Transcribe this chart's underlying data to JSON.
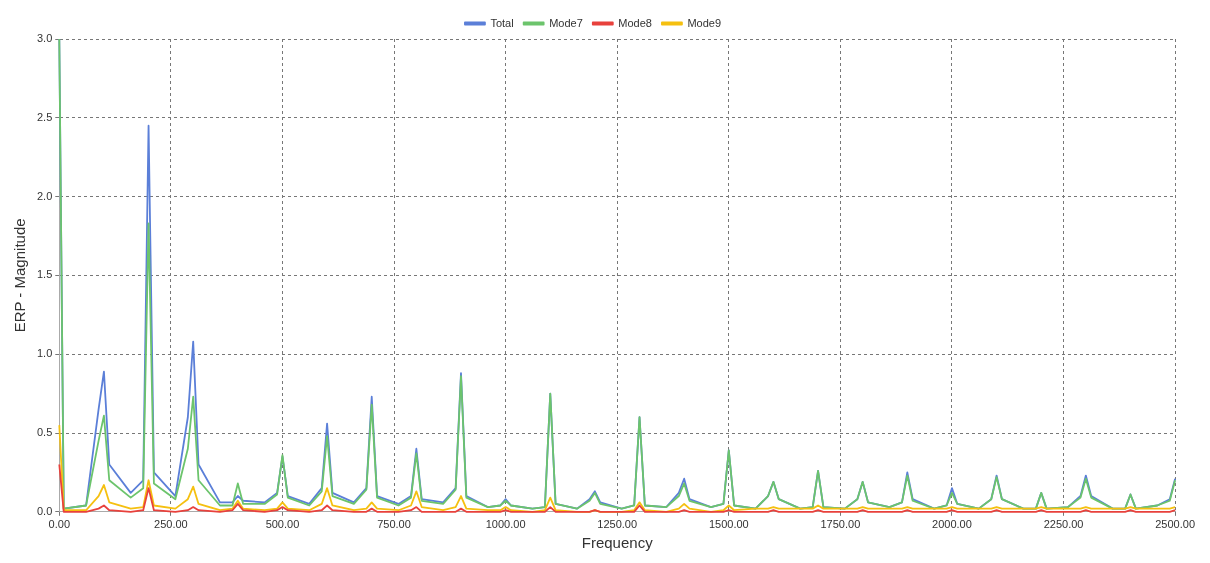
{
  "chart_data": {
    "type": "line",
    "xlabel": "Frequency",
    "ylabel": "ERP - Magnitude",
    "x": [
      0,
      10,
      60,
      88,
      100,
      112,
      160,
      188,
      200,
      212,
      260,
      288,
      300,
      312,
      360,
      388,
      400,
      412,
      460,
      488,
      500,
      512,
      560,
      588,
      600,
      612,
      660,
      688,
      700,
      712,
      760,
      788,
      800,
      812,
      860,
      888,
      900,
      912,
      960,
      988,
      1000,
      1012,
      1060,
      1088,
      1100,
      1112,
      1160,
      1188,
      1200,
      1212,
      1260,
      1288,
      1300,
      1312,
      1360,
      1388,
      1400,
      1412,
      1460,
      1488,
      1500,
      1512,
      1560,
      1588,
      1600,
      1612,
      1660,
      1688,
      1700,
      1712,
      1760,
      1788,
      1800,
      1812,
      1860,
      1888,
      1900,
      1912,
      1960,
      1988,
      2000,
      2012,
      2060,
      2088,
      2100,
      2112,
      2160,
      2188,
      2200,
      2212,
      2260,
      2288,
      2300,
      2312,
      2360,
      2388,
      2400,
      2412,
      2460,
      2488,
      2500
    ],
    "series": [
      {
        "name": "Total",
        "color": "#5b7fd8",
        "values": [
          3.0,
          0.02,
          0.04,
          0.65,
          0.89,
          0.3,
          0.12,
          0.2,
          2.45,
          0.25,
          0.1,
          0.6,
          1.08,
          0.3,
          0.06,
          0.06,
          0.1,
          0.07,
          0.06,
          0.12,
          0.35,
          0.1,
          0.05,
          0.15,
          0.56,
          0.12,
          0.06,
          0.15,
          0.73,
          0.1,
          0.05,
          0.1,
          0.4,
          0.08,
          0.06,
          0.15,
          0.88,
          0.1,
          0.03,
          0.04,
          0.08,
          0.04,
          0.02,
          0.03,
          0.75,
          0.05,
          0.02,
          0.08,
          0.13,
          0.06,
          0.02,
          0.04,
          0.6,
          0.04,
          0.03,
          0.12,
          0.21,
          0.08,
          0.03,
          0.05,
          0.39,
          0.04,
          0.02,
          0.1,
          0.19,
          0.08,
          0.02,
          0.03,
          0.26,
          0.03,
          0.02,
          0.08,
          0.19,
          0.06,
          0.03,
          0.06,
          0.25,
          0.08,
          0.02,
          0.04,
          0.15,
          0.05,
          0.02,
          0.08,
          0.23,
          0.08,
          0.02,
          0.02,
          0.12,
          0.02,
          0.03,
          0.1,
          0.23,
          0.1,
          0.02,
          0.02,
          0.11,
          0.02,
          0.04,
          0.08,
          0.21
        ]
      },
      {
        "name": "Mode7",
        "color": "#6cc46c",
        "values": [
          3.0,
          0.02,
          0.04,
          0.45,
          0.61,
          0.2,
          0.09,
          0.15,
          1.83,
          0.18,
          0.08,
          0.4,
          0.73,
          0.2,
          0.04,
          0.04,
          0.18,
          0.05,
          0.05,
          0.11,
          0.36,
          0.09,
          0.04,
          0.13,
          0.48,
          0.1,
          0.05,
          0.14,
          0.68,
          0.09,
          0.04,
          0.09,
          0.37,
          0.07,
          0.05,
          0.14,
          0.86,
          0.09,
          0.03,
          0.04,
          0.07,
          0.04,
          0.02,
          0.03,
          0.75,
          0.05,
          0.02,
          0.07,
          0.12,
          0.05,
          0.02,
          0.04,
          0.6,
          0.04,
          0.03,
          0.1,
          0.18,
          0.07,
          0.03,
          0.05,
          0.39,
          0.04,
          0.02,
          0.1,
          0.19,
          0.08,
          0.02,
          0.03,
          0.26,
          0.03,
          0.02,
          0.08,
          0.19,
          0.06,
          0.03,
          0.06,
          0.23,
          0.07,
          0.02,
          0.04,
          0.12,
          0.05,
          0.02,
          0.08,
          0.22,
          0.08,
          0.02,
          0.02,
          0.12,
          0.02,
          0.03,
          0.09,
          0.21,
          0.09,
          0.02,
          0.02,
          0.11,
          0.02,
          0.04,
          0.07,
          0.2
        ]
      },
      {
        "name": "Mode8",
        "color": "#e8413c",
        "values": [
          0.3,
          0.0,
          0.0,
          0.02,
          0.04,
          0.01,
          0.0,
          0.01,
          0.15,
          0.01,
          0.0,
          0.01,
          0.03,
          0.01,
          0.0,
          0.01,
          0.05,
          0.01,
          0.0,
          0.01,
          0.03,
          0.01,
          0.0,
          0.01,
          0.04,
          0.01,
          0.0,
          0.0,
          0.02,
          0.0,
          0.0,
          0.01,
          0.03,
          0.0,
          0.0,
          0.0,
          0.02,
          0.0,
          0.0,
          0.0,
          0.01,
          0.0,
          0.0,
          0.0,
          0.03,
          0.0,
          0.0,
          0.0,
          0.01,
          0.0,
          0.0,
          0.0,
          0.04,
          0.0,
          0.0,
          0.0,
          0.01,
          0.0,
          0.0,
          0.0,
          0.01,
          0.0,
          0.0,
          0.0,
          0.01,
          0.0,
          0.0,
          0.0,
          0.01,
          0.0,
          0.0,
          0.0,
          0.01,
          0.0,
          0.0,
          0.0,
          0.01,
          0.0,
          0.0,
          0.0,
          0.01,
          0.0,
          0.0,
          0.0,
          0.01,
          0.0,
          0.0,
          0.0,
          0.01,
          0.0,
          0.0,
          0.0,
          0.01,
          0.0,
          0.0,
          0.0,
          0.01,
          0.0,
          0.0,
          0.0,
          0.01
        ]
      },
      {
        "name": "Mode9",
        "color": "#f5c010",
        "values": [
          0.55,
          0.01,
          0.01,
          0.1,
          0.17,
          0.06,
          0.02,
          0.03,
          0.2,
          0.04,
          0.02,
          0.08,
          0.16,
          0.05,
          0.01,
          0.02,
          0.07,
          0.02,
          0.01,
          0.02,
          0.06,
          0.02,
          0.01,
          0.05,
          0.15,
          0.04,
          0.01,
          0.02,
          0.06,
          0.02,
          0.01,
          0.04,
          0.13,
          0.03,
          0.01,
          0.03,
          0.1,
          0.02,
          0.01,
          0.01,
          0.03,
          0.01,
          0.0,
          0.01,
          0.09,
          0.01,
          0.0,
          0.0,
          0.01,
          0.0,
          0.0,
          0.01,
          0.06,
          0.01,
          0.0,
          0.02,
          0.05,
          0.02,
          0.0,
          0.01,
          0.04,
          0.01,
          0.02,
          0.02,
          0.03,
          0.02,
          0.02,
          0.02,
          0.04,
          0.02,
          0.02,
          0.02,
          0.03,
          0.02,
          0.02,
          0.02,
          0.03,
          0.02,
          0.02,
          0.02,
          0.03,
          0.02,
          0.02,
          0.02,
          0.03,
          0.02,
          0.02,
          0.02,
          0.03,
          0.02,
          0.02,
          0.02,
          0.03,
          0.02,
          0.02,
          0.02,
          0.03,
          0.02,
          0.02,
          0.02,
          0.03
        ]
      }
    ],
    "xlim": [
      0,
      2500
    ],
    "xticks": [
      {
        "value": 0,
        "label": "0.00"
      },
      {
        "value": 250,
        "label": "250.00"
      },
      {
        "value": 500,
        "label": "500.00"
      },
      {
        "value": 750,
        "label": "750.00"
      },
      {
        "value": 1000,
        "label": "1000.00"
      },
      {
        "value": 1250,
        "label": "1250.00"
      },
      {
        "value": 1500,
        "label": "1500.00"
      },
      {
        "value": 1750,
        "label": "1750.00"
      },
      {
        "value": 2000,
        "label": "2000.00"
      },
      {
        "value": 2250,
        "label": "2250.00"
      },
      {
        "value": 2500,
        "label": "2500.00"
      }
    ],
    "ylim": [
      0,
      3
    ],
    "yticks": [
      {
        "value": 0,
        "label": "0.0"
      },
      {
        "value": 0.5,
        "label": "0.5"
      },
      {
        "value": 1,
        "label": "1.0"
      },
      {
        "value": 1.5,
        "label": "1.5"
      },
      {
        "value": 2,
        "label": "2.0"
      },
      {
        "value": 2.5,
        "label": "2.5"
      },
      {
        "value": 3,
        "label": "3.0"
      }
    ],
    "grid": true,
    "legend": "top",
    "marker": "none",
    "line_style": "solid"
  }
}
